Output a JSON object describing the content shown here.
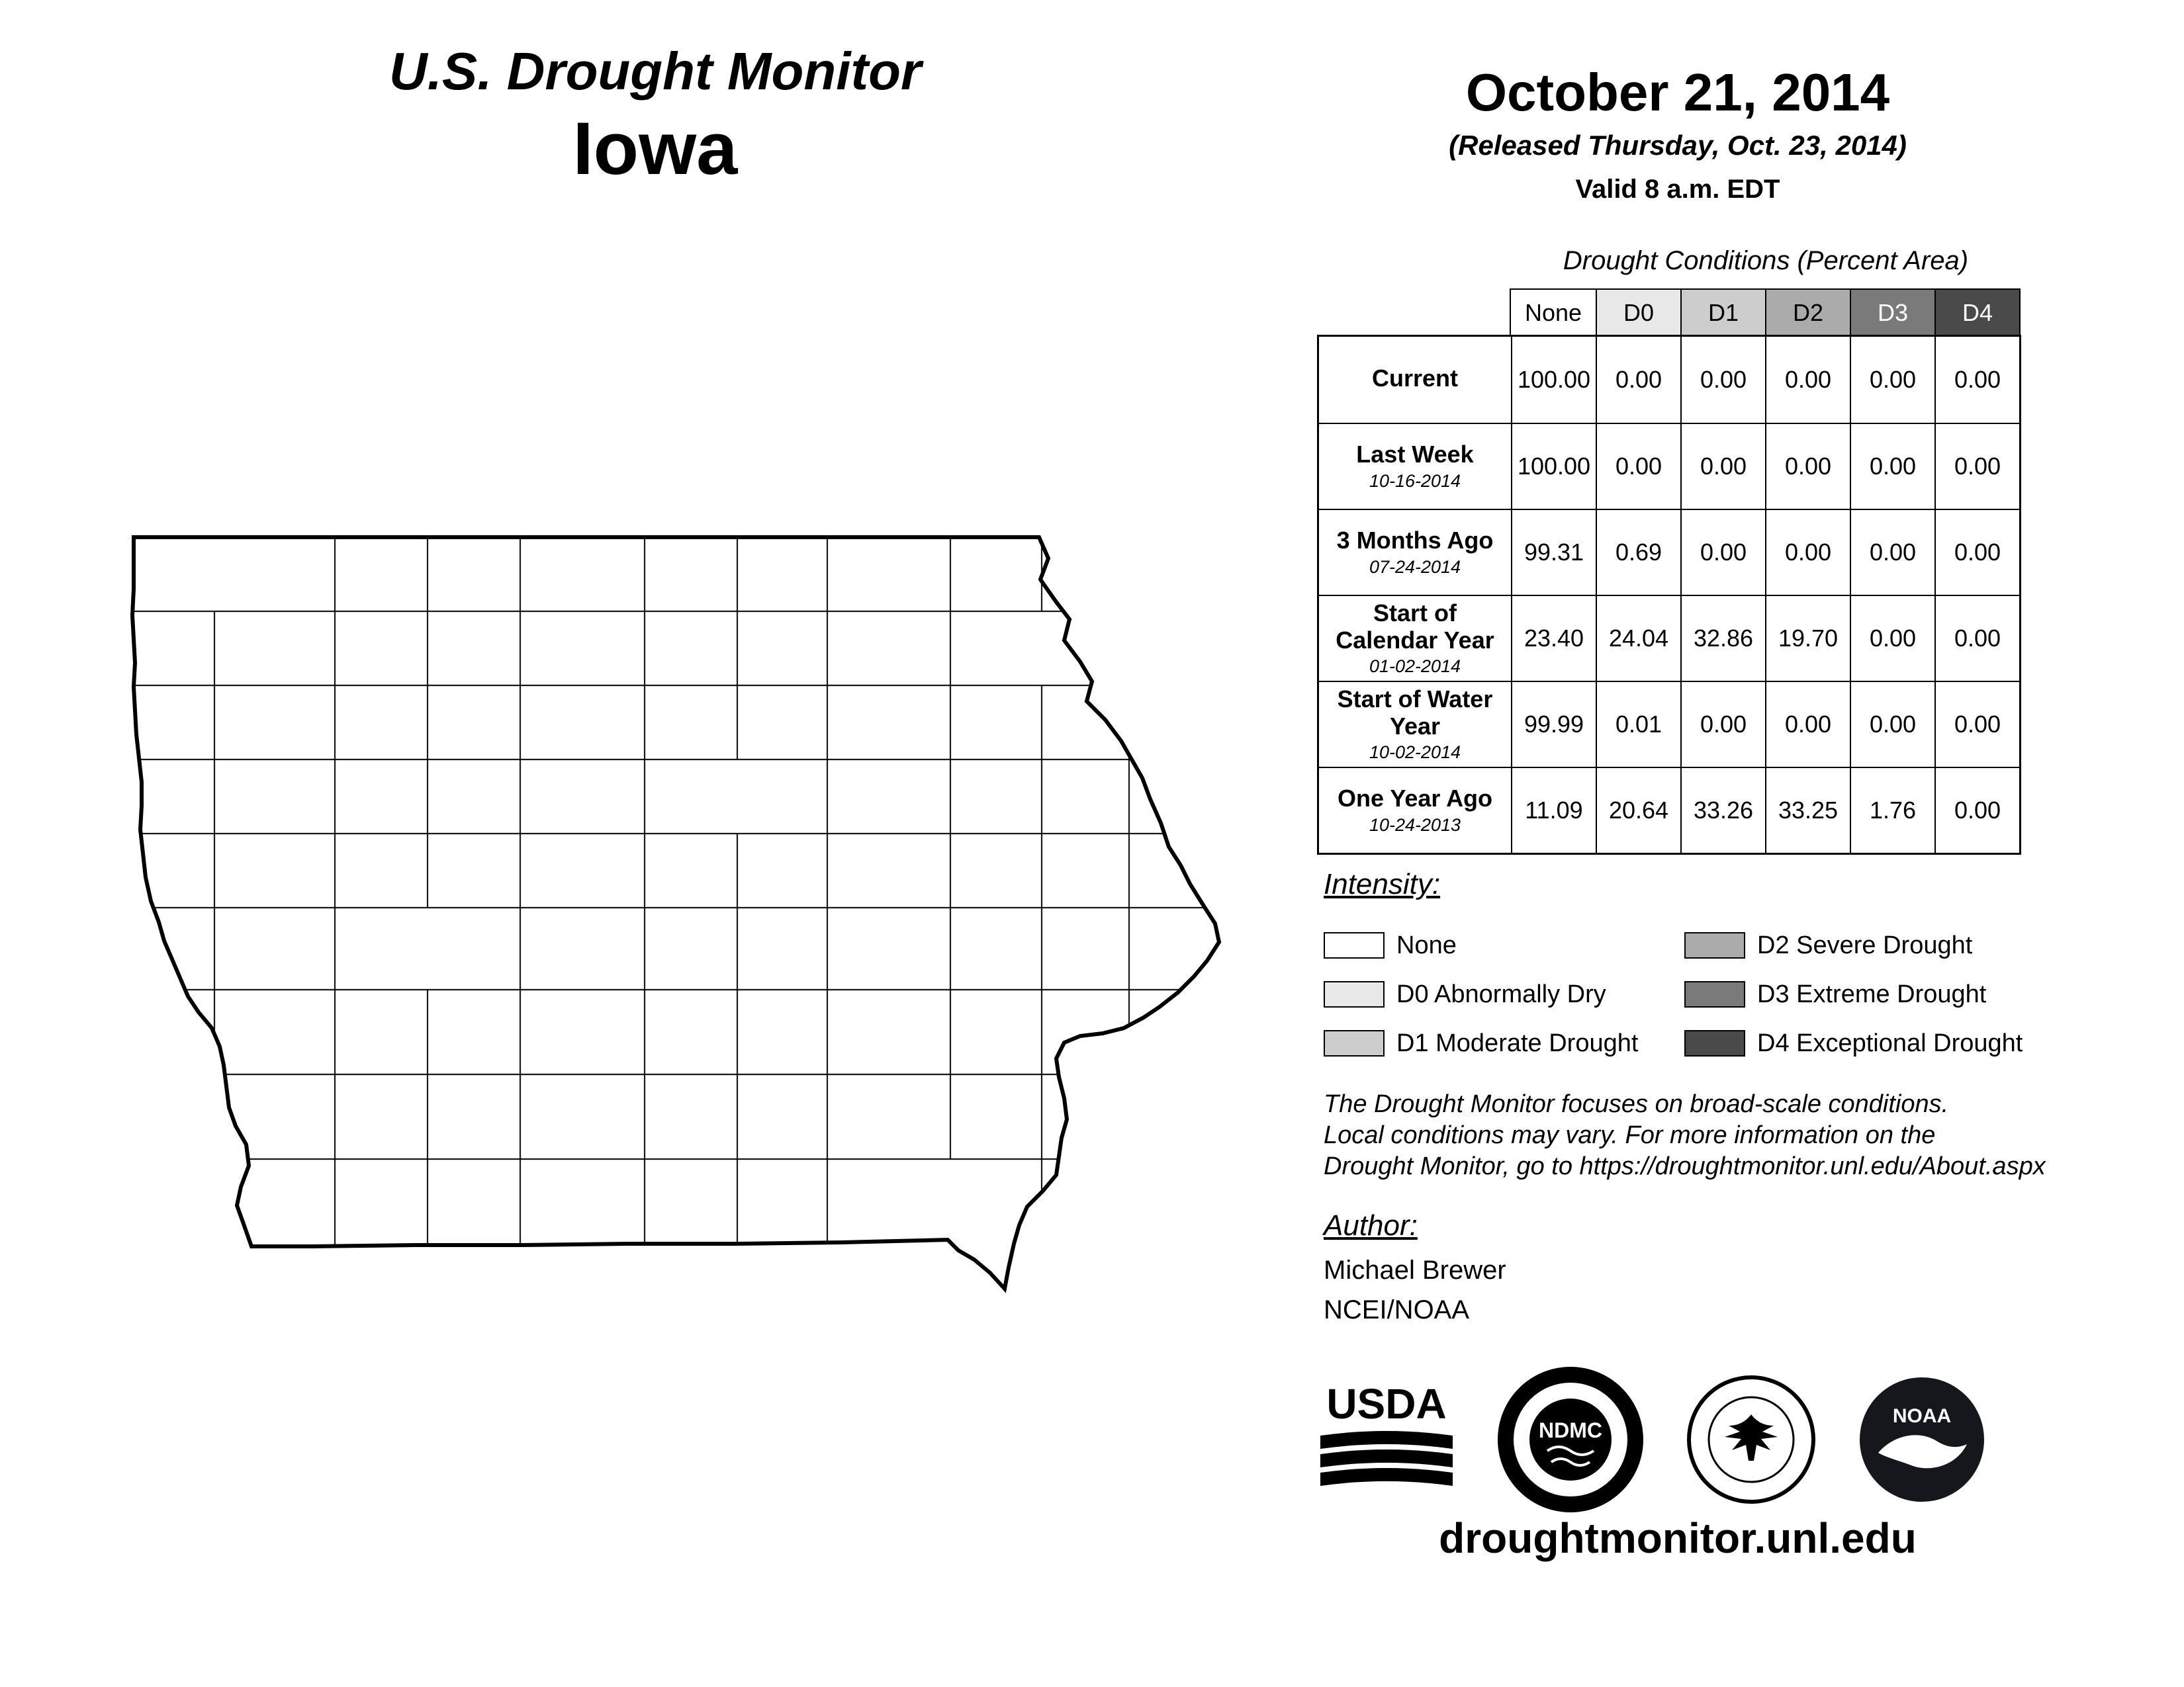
{
  "header": {
    "program": "U.S. Drought Monitor",
    "region": "Iowa",
    "date": "October 21, 2014",
    "released": "(Released Thursday, Oct. 23, 2014)",
    "valid": "Valid 8 a.m. EDT"
  },
  "table": {
    "caption": "Drought Conditions (Percent Area)",
    "columns": [
      "None",
      "D0",
      "D1",
      "D2",
      "D3",
      "D4"
    ],
    "rows": [
      {
        "label": "Current",
        "date": "",
        "values": [
          "100.00",
          "0.00",
          "0.00",
          "0.00",
          "0.00",
          "0.00"
        ]
      },
      {
        "label": "Last Week",
        "date": "10-16-2014",
        "values": [
          "100.00",
          "0.00",
          "0.00",
          "0.00",
          "0.00",
          "0.00"
        ]
      },
      {
        "label": "3 Months Ago",
        "date": "07-24-2014",
        "values": [
          "99.31",
          "0.69",
          "0.00",
          "0.00",
          "0.00",
          "0.00"
        ]
      },
      {
        "label": "Start of Calendar Year",
        "date": "01-02-2014",
        "values": [
          "23.40",
          "24.04",
          "32.86",
          "19.70",
          "0.00",
          "0.00"
        ]
      },
      {
        "label": "Start of Water Year",
        "date": "10-02-2014",
        "values": [
          "99.99",
          "0.01",
          "0.00",
          "0.00",
          "0.00",
          "0.00"
        ]
      },
      {
        "label": "One Year Ago",
        "date": "10-24-2013",
        "values": [
          "11.09",
          "20.64",
          "33.26",
          "33.25",
          "1.76",
          "0.00"
        ]
      }
    ]
  },
  "legend": {
    "title": "Intensity:",
    "items": [
      {
        "label": "None",
        "color": "#ffffff"
      },
      {
        "label": "D0 Abnormally Dry",
        "color": "#e8e8e8"
      },
      {
        "label": "D1 Moderate Drought",
        "color": "#cdcdcd"
      },
      {
        "label": "D2 Severe Drought",
        "color": "#ababab"
      },
      {
        "label": "D3 Extreme Drought",
        "color": "#7a7a7a"
      },
      {
        "label": "D4 Exceptional Drought",
        "color": "#4a4a4a"
      }
    ]
  },
  "disclaimer": {
    "lines": [
      "The Drought Monitor focuses on broad-scale conditions.",
      "Local conditions may vary. For more information on the",
      "Drought Monitor, go to https://droughtmonitor.unl.edu/About.aspx"
    ]
  },
  "author": {
    "heading": "Author:",
    "name": "Michael Brewer",
    "org": "NCEI/NOAA"
  },
  "logos": {
    "usda": "USDA",
    "ndmc": "NDMC",
    "noaa": "NOAA"
  },
  "footer": {
    "url": "droughtmonitor.unl.edu"
  }
}
